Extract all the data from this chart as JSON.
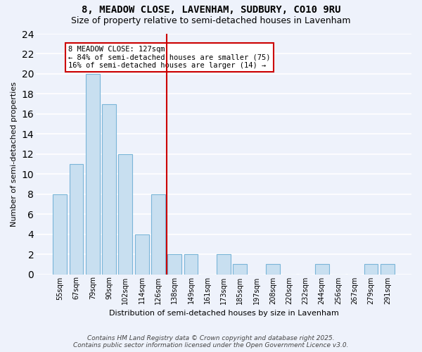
{
  "title": "8, MEADOW CLOSE, LAVENHAM, SUDBURY, CO10 9RU",
  "subtitle": "Size of property relative to semi-detached houses in Lavenham",
  "xlabel": "Distribution of semi-detached houses by size in Lavenham",
  "ylabel": "Number of semi-detached properties",
  "categories": [
    "55sqm",
    "67sqm",
    "79sqm",
    "90sqm",
    "102sqm",
    "114sqm",
    "126sqm",
    "138sqm",
    "149sqm",
    "161sqm",
    "173sqm",
    "185sqm",
    "197sqm",
    "208sqm",
    "220sqm",
    "232sqm",
    "244sqm",
    "256sqm",
    "267sqm",
    "279sqm",
    "291sqm"
  ],
  "values": [
    8,
    11,
    20,
    17,
    12,
    4,
    8,
    2,
    2,
    0,
    2,
    1,
    0,
    1,
    0,
    0,
    1,
    0,
    0,
    1,
    1
  ],
  "bar_color": "#c8dff0",
  "bar_edge_color": "#7ab5d8",
  "highlight_index": 6,
  "highlight_line_color": "#cc0000",
  "ylim": [
    0,
    24
  ],
  "yticks": [
    0,
    2,
    4,
    6,
    8,
    10,
    12,
    14,
    16,
    18,
    20,
    22,
    24
  ],
  "annotation_title": "8 MEADOW CLOSE: 127sqm",
  "annotation_line1": "← 84% of semi-detached houses are smaller (75)",
  "annotation_line2": "16% of semi-detached houses are larger (14) →",
  "annotation_box_color": "#ffffff",
  "annotation_box_edge_color": "#cc0000",
  "footer1": "Contains HM Land Registry data © Crown copyright and database right 2025.",
  "footer2": "Contains public sector information licensed under the Open Government Licence v3.0.",
  "background_color": "#eef2fb",
  "grid_color": "#ffffff",
  "title_fontsize": 10,
  "subtitle_fontsize": 9,
  "axis_fontsize": 8,
  "tick_fontsize": 7,
  "footer_fontsize": 6.5
}
